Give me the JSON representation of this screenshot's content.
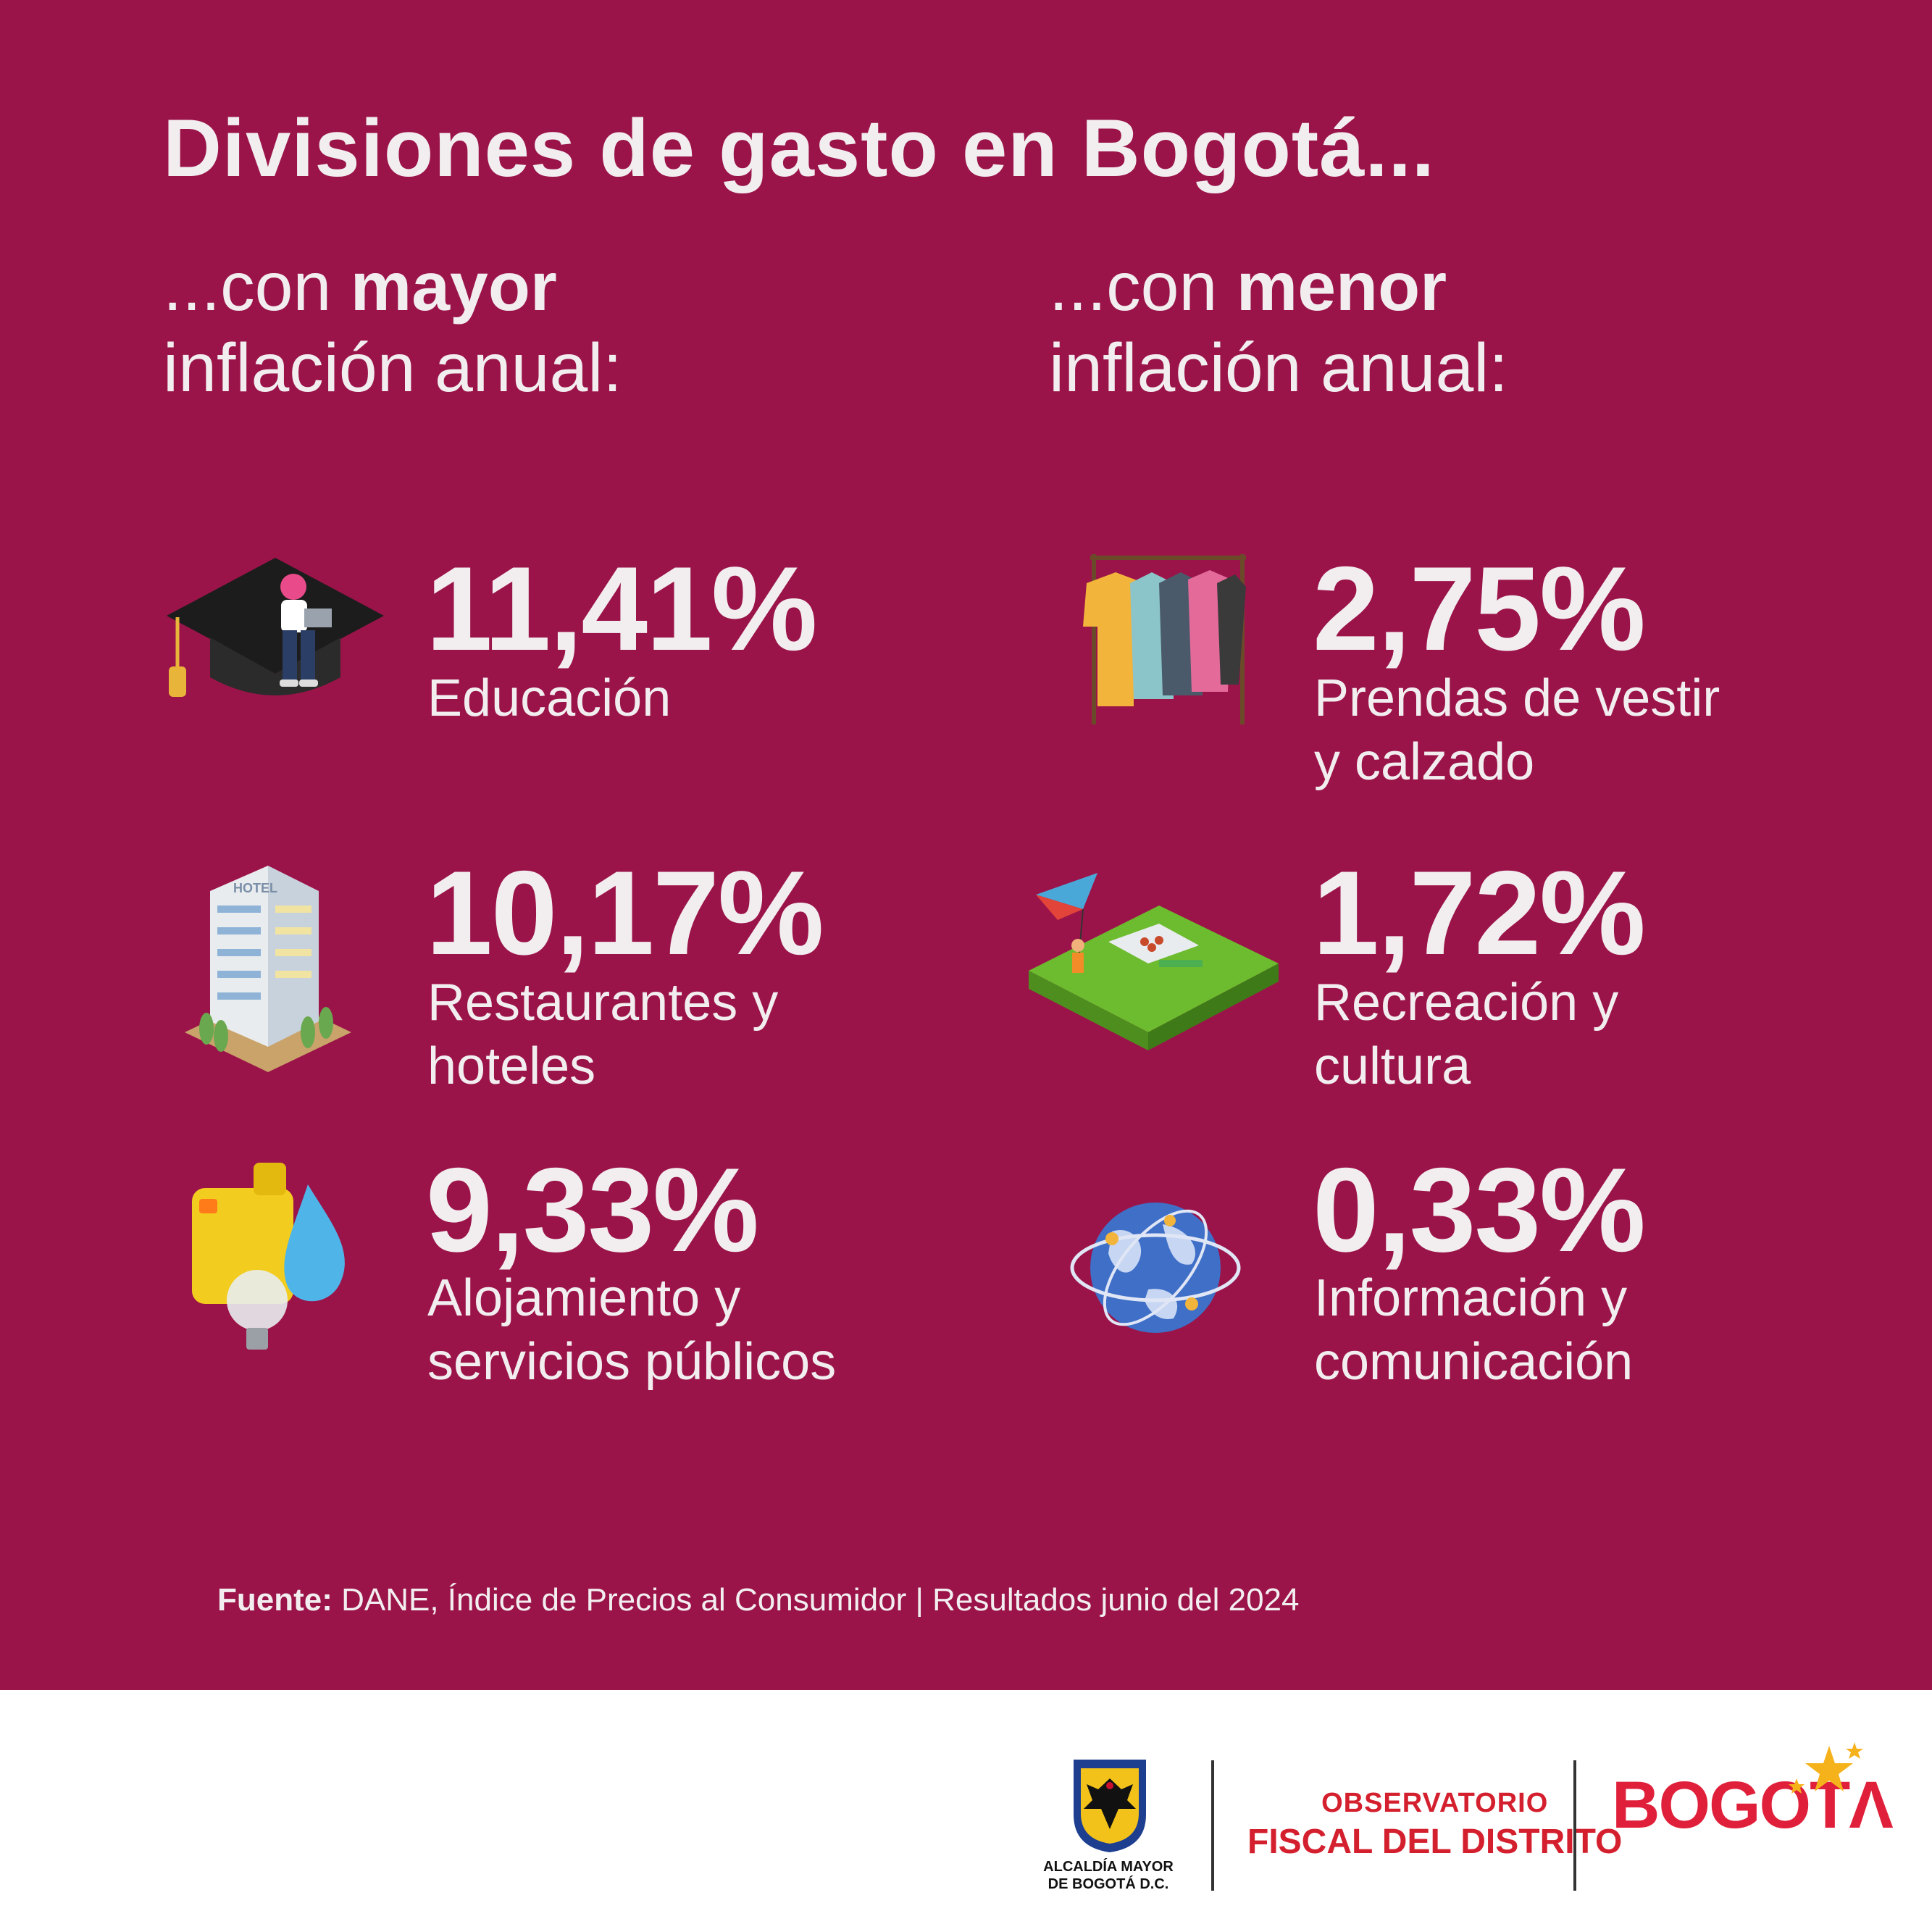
{
  "title": "Divisiones de gasto en Bogotá...",
  "left_heading": {
    "prefix": "...con ",
    "bold": "mayor",
    "line2": "inflación anual:"
  },
  "right_heading": {
    "prefix": "...con ",
    "bold": "menor",
    "line2": "inflación anual:"
  },
  "mayor": [
    {
      "value": "11,41%",
      "line1": "Educación",
      "line2": "",
      "icon": "graduation-cap-icon"
    },
    {
      "value": "10,17%",
      "line1": "Restaurantes y",
      "line2": "hoteles",
      "icon": "hotel-building-icon"
    },
    {
      "value": "9,33%",
      "line1": "Alojamiento y",
      "line2": "servicios públicos",
      "icon": "utilities-icon"
    }
  ],
  "menor": [
    {
      "value": "2,75%",
      "line1": "Prendas de vestir",
      "line2": "y calzado",
      "icon": "clothes-rack-icon"
    },
    {
      "value": "1,72%",
      "line1": "Recreación y",
      "line2": "cultura",
      "icon": "park-kite-icon"
    },
    {
      "value": "0,33%",
      "line1": "Información y",
      "line2": "comunicación",
      "icon": "globe-network-icon"
    }
  ],
  "source": {
    "label": "Fuente:",
    "text": " DANE, Índice de Precios al Consumidor | Resultados junio del 2024"
  },
  "footer": {
    "alcaldia_line1": "ALCALDÍA MAYOR",
    "alcaldia_line2": "DE BOGOTÁ D.C.",
    "observatorio_line1": "OBSERVATORIO",
    "observatorio_line2": "FISCAL DEL DISTRITO",
    "bogota_logo": "BOGOTΛ"
  },
  "colors": {
    "background": "#9b1449",
    "text": "#f2eef0",
    "brand_red": "#d4202e"
  }
}
